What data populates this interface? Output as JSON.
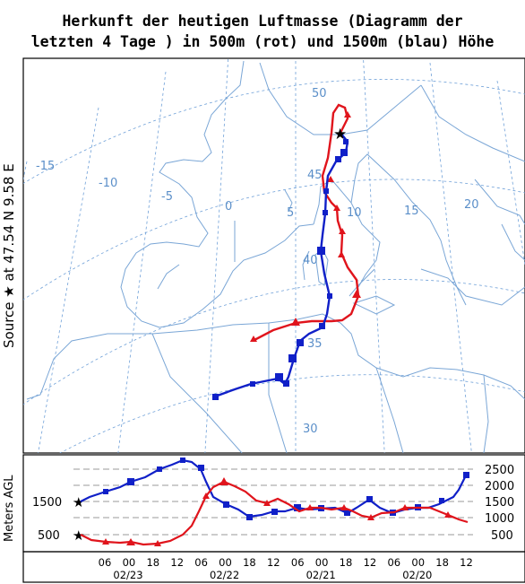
{
  "title": {
    "line1": "Herkunft der heutigen Luftmasse (Diagramm der",
    "line2": "letzten 4 Tage ) in 500m (rot) und 1500m (blau) Höhe"
  },
  "source_label": "Source ★  at   47.54 N   9.58 E",
  "height_axis_label": "Meters AGL",
  "map": {
    "lat_labels": [
      "50",
      "45",
      "40",
      "35",
      "30"
    ],
    "lon_labels": [
      "-15",
      "-10",
      "-5",
      "0",
      "5",
      "10",
      "15",
      "20"
    ],
    "source_marker": "★",
    "colors": {
      "red": "#e0141c",
      "blue": "#1020c8",
      "grid": "#6fa0d8",
      "coast": "#7aa6d6"
    }
  },
  "height_panel": {
    "right_ticks": [
      "2500",
      "2000",
      "1500",
      "1000",
      "500"
    ],
    "left_ticks": [
      "1500",
      "500"
    ],
    "hour_ticks": [
      "06",
      "00",
      "18",
      "12",
      "06",
      "00",
      "18",
      "12",
      "06",
      "00",
      "18",
      "12",
      "06",
      "00",
      "18",
      "12"
    ],
    "date_labels": [
      "02/23",
      "02/22",
      "02/21",
      "02/20"
    ]
  }
}
